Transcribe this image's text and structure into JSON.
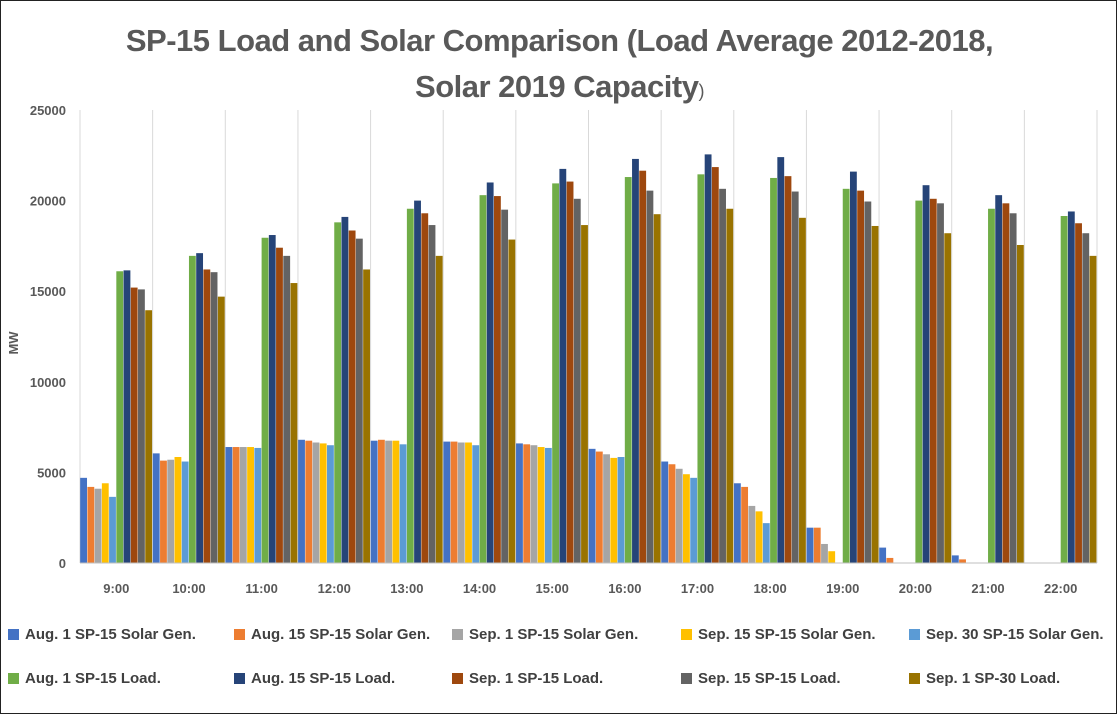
{
  "chart_data": {
    "type": "bar",
    "title_line1": "SP-15 Load and Solar Comparison (Load Average 2012-2018,",
    "title_line2": "Solar 2019 Capacity",
    "title_tail": ")",
    "xlabel": "",
    "ylabel": "MW",
    "ylim": [
      0,
      25000
    ],
    "yticks": [
      "0",
      "5000",
      "10000",
      "15000",
      "20000",
      "25000"
    ],
    "grid": "vertical",
    "legend_position": "bottom",
    "categories": [
      "9:00",
      "10:00",
      "11:00",
      "12:00",
      "13:00",
      "14:00",
      "15:00",
      "16:00",
      "17:00",
      "18:00",
      "19:00",
      "20:00",
      "21:00",
      "22:00"
    ],
    "series": [
      {
        "name": "Aug. 1 SP-15 Solar Gen.",
        "color": "#4472C4",
        "values": [
          4700,
          6050,
          6400,
          6800,
          6750,
          6700,
          6600,
          6300,
          5600,
          4400,
          1950,
          850,
          420,
          0
        ]
      },
      {
        "name": "Aug. 15 SP-15 Solar Gen.",
        "color": "#ED7D31",
        "values": [
          4200,
          5650,
          6400,
          6750,
          6800,
          6700,
          6550,
          6150,
          5450,
          4200,
          1950,
          280,
          200,
          0
        ]
      },
      {
        "name": "Sep. 1 SP-15 Solar Gen.",
        "color": "#A5A5A5",
        "values": [
          4100,
          5700,
          6400,
          6650,
          6750,
          6650,
          6500,
          6000,
          5200,
          3150,
          1050,
          0,
          0,
          0
        ]
      },
      {
        "name": "Sep. 15 SP-15 Solar Gen.",
        "color": "#FFC000",
        "values": [
          4400,
          5850,
          6400,
          6600,
          6750,
          6650,
          6400,
          5800,
          4900,
          2850,
          650,
          0,
          0,
          0
        ]
      },
      {
        "name": "Sep. 30 SP-15 Solar Gen.",
        "color": "#5B9BD5",
        "values": [
          3650,
          5600,
          6350,
          6500,
          6550,
          6500,
          6350,
          5850,
          4700,
          2200,
          0,
          0,
          0,
          0
        ]
      },
      {
        "name": "Aug. 1 SP-15 Load.",
        "color": "#70AD47",
        "values": [
          16100,
          16950,
          17950,
          18800,
          19550,
          20300,
          20950,
          21300,
          21450,
          21250,
          20650,
          20000,
          19550,
          19150
        ]
      },
      {
        "name": "Aug. 15 SP-15 Load.",
        "color": "#264478",
        "values": [
          16150,
          17100,
          18100,
          19100,
          20000,
          21000,
          21750,
          22300,
          22550,
          22400,
          21600,
          20850,
          20300,
          19400
        ]
      },
      {
        "name": "Sep. 1 SP-15 Load.",
        "color": "#9E480E",
        "values": [
          15200,
          16200,
          17400,
          18350,
          19300,
          20250,
          21050,
          21650,
          21850,
          21350,
          20550,
          20100,
          19850,
          18750
        ]
      },
      {
        "name": "Sep. 15 SP-15 Load.",
        "color": "#636363",
        "values": [
          15100,
          16050,
          16950,
          17900,
          18650,
          19500,
          20100,
          20550,
          20650,
          20500,
          19950,
          19850,
          19300,
          18200
        ]
      },
      {
        "name": "Sep. 1 SP-30 Load.",
        "color": "#997300",
        "values": [
          13950,
          14700,
          15450,
          16200,
          16950,
          17850,
          18650,
          19250,
          19550,
          19050,
          18600,
          18200,
          17550,
          16950
        ]
      }
    ]
  }
}
